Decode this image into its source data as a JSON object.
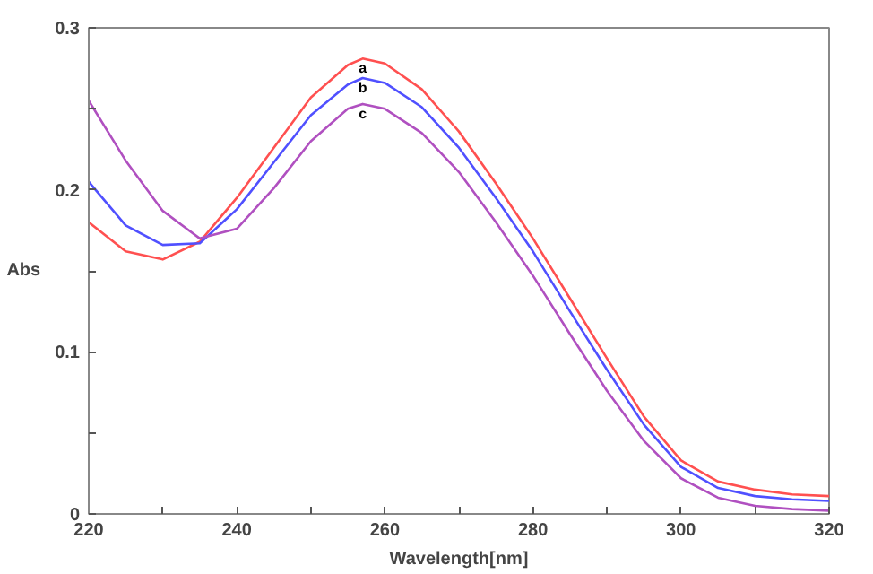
{
  "chart_data": {
    "type": "line",
    "xlabel": "Wavelength[nm]",
    "ylabel": "Abs",
    "xlim": [
      220,
      320
    ],
    "ylim": [
      0,
      0.3
    ],
    "xticks": [
      220,
      {
        "value": 230,
        "label": null
      },
      240,
      {
        "value": 250,
        "label": null
      },
      260,
      {
        "value": 270,
        "label": null
      },
      280,
      {
        "value": 290,
        "label": null
      },
      300,
      {
        "value": 310,
        "label": null
      },
      320
    ],
    "yticks": [
      0,
      {
        "value": 0.05,
        "label": null
      },
      0.1,
      {
        "value": 0.15,
        "label": null
      },
      0.2,
      {
        "value": 0.25,
        "label": null
      },
      0.3
    ],
    "grid": false,
    "marker": "none",
    "line_style": "solid",
    "x": [
      220,
      225,
      230,
      235,
      240,
      245,
      250,
      255,
      257,
      260,
      265,
      270,
      275,
      280,
      285,
      290,
      295,
      300,
      305,
      310,
      315,
      320
    ],
    "series": [
      {
        "color": "#ff5050",
        "values": [
          0.18,
          0.162,
          0.157,
          0.168,
          0.195,
          0.226,
          0.257,
          0.277,
          0.281,
          0.278,
          0.262,
          0.236,
          0.204,
          0.17,
          0.133,
          0.096,
          0.06,
          0.033,
          0.02,
          0.015,
          0.012,
          0.011
        ]
      },
      {
        "color": "#5050ff",
        "values": [
          0.205,
          0.178,
          0.166,
          0.167,
          0.188,
          0.217,
          0.246,
          0.265,
          0.269,
          0.266,
          0.251,
          0.226,
          0.195,
          0.162,
          0.125,
          0.089,
          0.055,
          0.029,
          0.016,
          0.011,
          0.009,
          0.008
        ]
      },
      {
        "color": "#b050c0",
        "values": [
          0.255,
          0.218,
          0.187,
          0.17,
          0.176,
          0.201,
          0.23,
          0.25,
          0.253,
          0.25,
          0.235,
          0.211,
          0.18,
          0.147,
          0.111,
          0.076,
          0.045,
          0.022,
          0.01,
          0.005,
          0.003,
          0.002
        ]
      }
    ],
    "annotations": [
      "a",
      "b",
      "c"
    ]
  }
}
